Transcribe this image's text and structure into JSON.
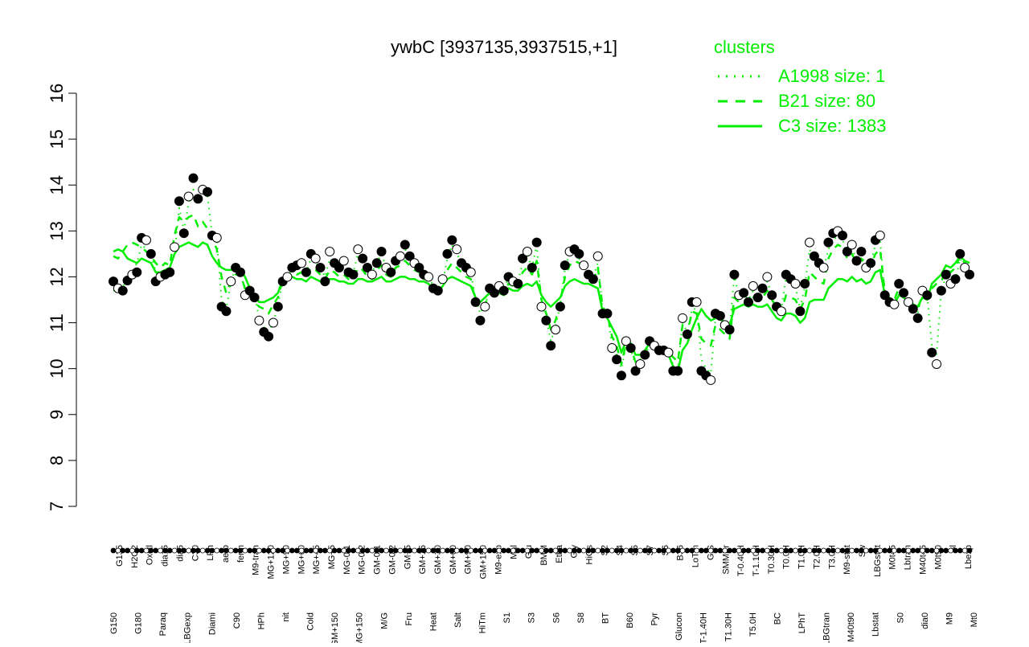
{
  "chart_data": {
    "type": "line",
    "title": "ywbC [3937135,3937515,+1]",
    "xlabel": "",
    "ylabel": "",
    "ylim": [
      7,
      16
    ],
    "yticks": [
      7,
      8,
      9,
      10,
      11,
      12,
      13,
      14,
      15,
      16
    ],
    "top_labels": [
      "G135",
      "H2O2",
      "Oxctl",
      "dia15",
      "dia5",
      "C30",
      "LPh",
      "aero",
      "ferm",
      "M9-tran",
      "MG+120",
      "MG+90",
      "MG+60",
      "MG+45",
      "MG+5",
      "MG-0.1",
      "MG-0.2",
      "GM-0.1",
      "GM-0.2",
      "GM+5",
      "GM+15",
      "GM+30",
      "GM+60",
      "GM+90",
      "GM+150",
      "M9-exp",
      "Mal",
      "Glu",
      "BMM",
      "Etha",
      "Gly",
      "HiOs",
      "S2",
      "S4",
      "S5",
      "S7",
      "S6",
      "B36",
      "LoTm",
      "G/S",
      "SMMPr",
      "T-0.40H",
      "T-1.10H",
      "T0.30H",
      "T0.0H",
      "T1.0H",
      "T2.0H",
      "T3.0H",
      "M9-stat",
      "Sw",
      "LBGstat",
      "M0t45",
      "Lbtran",
      "M40t45",
      "M0t90",
      "Bl",
      "Lbexp"
    ],
    "bottom_labels": [
      "G150",
      "G180",
      "Paraq",
      "LBGexp",
      "Diami",
      "C90",
      "HPh",
      "nit",
      "Cold",
      "GM+150",
      "MG+150",
      "M/G",
      "Fru",
      "Heat",
      "Salt",
      "HiTm",
      "S1",
      "S3",
      "S6",
      "S8",
      "BT",
      "B60",
      "Pyr",
      "Glucon",
      "T-1.40H",
      "T1.30H",
      "T5.0H",
      "BC",
      "LPhT",
      "LBGtran",
      "M40t90",
      "Lbstat",
      "S0",
      "dia0",
      "M9",
      "Mt0"
    ],
    "points": [
      11.9,
      11.75,
      11.7,
      11.92,
      12.05,
      12.1,
      12.85,
      12.8,
      12.5,
      11.9,
      12.0,
      12.05,
      12.1,
      12.65,
      13.65,
      12.95,
      13.75,
      14.15,
      13.7,
      13.9,
      13.85,
      12.9,
      12.85,
      11.35,
      11.25,
      11.9,
      12.2,
      12.1,
      11.6,
      11.7,
      11.55,
      11.05,
      10.8,
      10.7,
      11.0,
      11.35,
      11.9,
      12.0,
      12.2,
      12.25,
      12.3,
      12.1,
      12.5,
      12.4,
      12.2,
      11.9,
      12.55,
      12.3,
      12.2,
      12.35,
      12.1,
      12.05,
      12.6,
      12.4,
      12.2,
      12.05,
      12.3,
      12.55,
      12.2,
      12.1,
      12.35,
      12.45,
      12.7,
      12.45,
      12.3,
      12.2,
      12.05,
      12.0,
      11.75,
      11.7,
      11.95,
      12.5,
      12.8,
      12.6,
      12.3,
      12.2,
      12.1,
      11.45,
      11.05,
      11.35,
      11.75,
      11.65,
      11.8,
      11.7,
      12.0,
      11.9,
      11.85,
      12.4,
      12.55,
      12.2,
      12.75,
      11.35,
      11.05,
      10.5,
      10.85,
      11.35,
      12.25,
      12.55,
      12.6,
      12.5,
      12.25,
      12.05,
      11.95,
      12.45,
      11.2,
      11.2,
      10.45,
      10.2,
      9.85,
      10.6,
      10.45,
      9.95,
      10.1,
      10.3,
      10.6,
      10.5,
      10.4,
      10.4,
      10.35,
      9.95,
      9.95,
      11.1,
      10.75,
      11.45,
      11.45,
      9.95,
      9.85,
      9.75,
      11.2,
      11.15,
      10.95,
      10.85,
      12.05,
      11.6,
      11.65,
      11.45,
      11.8,
      11.55,
      11.75,
      12.0,
      11.6,
      11.35,
      11.25,
      12.05,
      11.95,
      11.85,
      11.25,
      11.85,
      12.75,
      12.45,
      12.3,
      12.2,
      12.75,
      12.95,
      13.0,
      12.9,
      12.55,
      12.7,
      12.35,
      12.55,
      12.2,
      12.3,
      12.8,
      12.9,
      11.6,
      11.45,
      11.4,
      11.85,
      11.65,
      11.45,
      11.3,
      11.1,
      11.7,
      11.6,
      10.35,
      10.1,
      11.7,
      12.05,
      11.85,
      11.95,
      12.5,
      12.2,
      12.05
    ],
    "series": [
      {
        "name": "A1998 size: 1",
        "style": "dotted",
        "values": [
          11.7,
          11.7,
          11.8,
          11.9,
          12.1,
          12.3,
          12.7,
          12.6,
          12.5,
          12.1,
          12.0,
          12.1,
          12.2,
          12.5,
          13.5,
          13.0,
          13.6,
          13.9,
          13.7,
          13.8,
          13.8,
          12.9,
          12.8,
          11.5,
          11.3,
          11.9,
          12.2,
          12.1,
          11.7,
          11.7,
          11.6,
          11.1,
          10.9,
          10.8,
          11.0,
          11.4,
          11.9,
          12.0,
          12.2,
          12.3,
          12.3,
          12.1,
          12.4,
          12.3,
          12.2,
          12.0,
          12.4,
          12.3,
          12.2,
          12.3,
          12.1,
          12.1,
          12.5,
          12.4,
          12.2,
          12.1,
          12.3,
          12.5,
          12.2,
          12.1,
          12.3,
          12.4,
          12.6,
          12.4,
          12.3,
          12.2,
          12.1,
          12.0,
          11.8,
          11.8,
          11.9,
          12.4,
          12.7,
          12.5,
          12.3,
          12.2,
          12.1,
          11.5,
          11.2,
          11.4,
          11.7,
          11.7,
          11.8,
          11.7,
          12.0,
          11.9,
          11.9,
          12.3,
          12.5,
          12.2,
          12.7,
          11.4,
          11.1,
          10.6,
          10.9,
          11.4,
          12.2,
          12.5,
          12.5,
          12.4,
          12.2,
          12.1,
          12.0,
          12.3,
          11.3,
          11.2,
          10.5,
          10.3,
          10.0,
          10.5,
          10.4,
          10.1,
          10.2,
          10.3,
          10.5,
          10.4,
          10.4,
          10.4,
          10.3,
          10.1,
          10.0,
          11.0,
          10.8,
          11.3,
          11.3,
          10.2,
          10.0,
          9.9,
          11.1,
          11.1,
          10.9,
          10.9,
          12.0,
          11.6,
          11.6,
          11.5,
          11.7,
          11.6,
          11.7,
          11.9,
          11.6,
          11.4,
          11.3,
          12.0,
          11.9,
          11.8,
          11.3,
          11.8,
          12.6,
          12.4,
          12.3,
          12.2,
          12.6,
          12.8,
          12.9,
          12.8,
          12.5,
          12.6,
          12.4,
          12.5,
          12.2,
          12.3,
          12.7,
          12.8,
          11.6,
          11.5,
          11.4,
          11.8,
          11.6,
          11.5,
          11.3,
          11.2,
          11.7,
          11.6,
          10.5,
          10.3,
          11.7,
          12.0,
          11.9,
          11.9,
          12.4,
          12.2,
          12.1
        ]
      },
      {
        "name": "B21 size: 80",
        "style": "dashed",
        "values": [
          12.45,
          12.4,
          12.55,
          12.7,
          12.75,
          12.7,
          12.65,
          12.55,
          12.45,
          12.3,
          12.2,
          12.3,
          12.25,
          12.9,
          13.3,
          13.2,
          13.3,
          13.35,
          13.1,
          13.2,
          13.05,
          12.85,
          12.6,
          12.0,
          11.65,
          11.9,
          12.05,
          12.05,
          11.75,
          11.6,
          11.45,
          11.35,
          11.3,
          11.2,
          11.4,
          11.55,
          11.95,
          12.05,
          12.1,
          12.05,
          12.1,
          12.0,
          12.2,
          12.15,
          12.05,
          11.95,
          12.15,
          12.1,
          12.0,
          12.05,
          11.95,
          11.95,
          12.2,
          12.15,
          12.0,
          11.95,
          12.15,
          12.25,
          12.05,
          12.0,
          12.2,
          12.25,
          12.35,
          12.25,
          12.15,
          12.1,
          11.95,
          11.95,
          11.75,
          11.75,
          11.95,
          12.15,
          12.3,
          12.2,
          12.1,
          12.0,
          11.95,
          11.45,
          11.3,
          11.4,
          11.65,
          11.6,
          11.7,
          11.65,
          11.85,
          11.8,
          11.75,
          12.1,
          12.2,
          12.05,
          12.35,
          11.5,
          11.2,
          10.85,
          11.05,
          11.45,
          12.0,
          12.25,
          12.35,
          12.3,
          12.15,
          12.0,
          11.9,
          12.2,
          11.35,
          11.2,
          10.7,
          10.5,
          10.1,
          10.55,
          10.45,
          10.15,
          10.2,
          10.35,
          10.55,
          10.45,
          10.45,
          10.4,
          10.35,
          10.25,
          10.15,
          10.95,
          10.75,
          11.25,
          11.2,
          10.65,
          10.55,
          10.5,
          10.95,
          10.85,
          10.75,
          10.65,
          11.55,
          11.45,
          11.5,
          11.4,
          11.55,
          11.5,
          11.55,
          11.7,
          11.5,
          11.35,
          11.25,
          11.6,
          11.55,
          11.5,
          11.3,
          11.5,
          12.1,
          12.0,
          11.9,
          11.85,
          12.4,
          12.6,
          12.7,
          12.65,
          12.4,
          12.5,
          12.3,
          12.4,
          12.2,
          12.25,
          12.5,
          12.6,
          11.65,
          11.55,
          11.5,
          11.75,
          11.65,
          11.55,
          11.4,
          11.3,
          11.6,
          11.55,
          11.75,
          11.85,
          11.9,
          12.15,
          12.1,
          12.2,
          12.45,
          12.3,
          12.2
        ]
      },
      {
        "name": "C3 size: 1383",
        "style": "solid",
        "values": [
          12.55,
          12.6,
          12.55,
          12.4,
          12.35,
          12.3,
          12.4,
          12.35,
          12.3,
          12.1,
          12.1,
          12.15,
          12.2,
          12.5,
          12.65,
          12.7,
          12.75,
          12.7,
          12.65,
          12.75,
          12.7,
          12.45,
          12.3,
          12.2,
          12.15,
          12.15,
          12.2,
          12.15,
          12.0,
          11.75,
          11.6,
          11.45,
          11.45,
          11.5,
          11.55,
          11.65,
          11.95,
          12.0,
          12.0,
          11.95,
          11.95,
          11.9,
          12.0,
          11.95,
          11.9,
          11.85,
          11.95,
          11.95,
          11.9,
          11.9,
          11.85,
          11.85,
          11.95,
          11.95,
          11.9,
          11.9,
          11.95,
          12.0,
          11.9,
          11.9,
          11.95,
          12.0,
          12.0,
          11.95,
          11.95,
          11.9,
          11.9,
          11.85,
          11.7,
          11.65,
          11.8,
          11.95,
          12.0,
          11.95,
          11.9,
          11.85,
          11.8,
          11.55,
          11.45,
          11.55,
          11.65,
          11.65,
          11.65,
          11.6,
          11.75,
          11.7,
          11.7,
          11.8,
          11.85,
          11.8,
          11.9,
          11.6,
          11.45,
          11.35,
          11.45,
          11.55,
          11.8,
          11.9,
          11.95,
          11.9,
          11.85,
          11.85,
          11.8,
          11.75,
          11.25,
          11.1,
          10.9,
          10.7,
          10.35,
          10.6,
          10.55,
          10.3,
          10.3,
          10.4,
          10.55,
          10.5,
          10.45,
          10.4,
          10.3,
          10.05,
          9.95,
          10.4,
          10.55,
          10.85,
          11.1,
          11.3,
          11.15,
          11.05,
          11.1,
          11.1,
          11.0,
          10.95,
          11.3,
          11.35,
          11.4,
          11.35,
          11.4,
          11.35,
          11.35,
          11.4,
          11.25,
          11.1,
          11.05,
          11.2,
          11.2,
          11.15,
          11.0,
          11.1,
          11.45,
          11.5,
          11.5,
          11.5,
          11.75,
          11.85,
          11.95,
          11.95,
          11.9,
          12.0,
          11.9,
          11.95,
          11.85,
          11.9,
          12.1,
          12.15,
          11.6,
          11.45,
          11.4,
          11.6,
          11.55,
          11.45,
          11.4,
          11.35,
          11.55,
          11.5,
          11.85,
          11.95,
          12.05,
          12.25,
          12.2,
          12.3,
          12.45,
          12.35,
          12.3
        ]
      }
    ],
    "legend": {
      "title": "clusters",
      "entries": [
        "A1998 size: 1",
        "B21 size: 80",
        "C3 size: 1383"
      ],
      "position": "top-right"
    },
    "grid": false,
    "colors": {
      "series": "#00ee00",
      "legend_text": "#00ee00",
      "points": "#000000"
    }
  }
}
